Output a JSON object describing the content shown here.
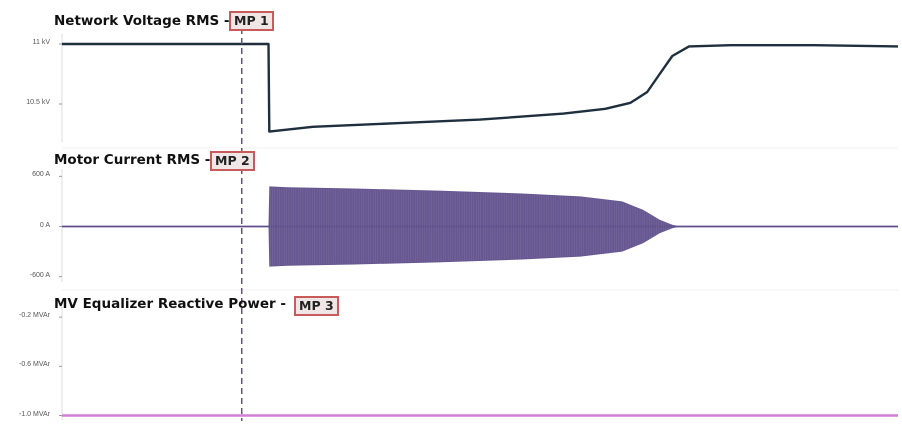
{
  "chart_data": [
    {
      "type": "line",
      "title": "Network Voltage RMS -",
      "badge": "MP 1",
      "yticks": [
        {
          "label": "11 kV",
          "value": 11.0
        },
        {
          "label": "10.5 kV",
          "value": 10.5
        }
      ],
      "ylim": [
        10.2,
        11.05
      ],
      "xlim": [
        0,
        100
      ],
      "series": [
        {
          "color": "#1f2f3d",
          "points": [
            [
              0,
              11.0
            ],
            [
              24.7,
              11.0
            ],
            [
              24.8,
              10.27
            ],
            [
              30,
              10.31
            ],
            [
              40,
              10.34
            ],
            [
              50,
              10.37
            ],
            [
              60,
              10.42
            ],
            [
              65,
              10.46
            ],
            [
              68,
              10.51
            ],
            [
              70,
              10.6
            ],
            [
              71.5,
              10.75
            ],
            [
              73,
              10.9
            ],
            [
              75,
              10.98
            ],
            [
              80,
              10.99
            ],
            [
              90,
              10.99
            ],
            [
              100,
              10.98
            ]
          ]
        }
      ]
    },
    {
      "type": "area",
      "title": "Motor Current RMS -",
      "badge": "MP 2",
      "yticks": [
        {
          "label": "600 A",
          "value": 600
        },
        {
          "label": "0 A",
          "value": 0
        },
        {
          "label": "-600 A",
          "value": -600
        }
      ],
      "ylim": [
        -640,
        640
      ],
      "xlim": [
        0,
        100
      ],
      "series": [
        {
          "color": "#5f4e8a",
          "envelope": [
            [
              0,
              0
            ],
            [
              24.7,
              0
            ],
            [
              24.8,
              480
            ],
            [
              27,
              470
            ],
            [
              35,
              455
            ],
            [
              45,
              430
            ],
            [
              55,
              395
            ],
            [
              62,
              360
            ],
            [
              67,
              300
            ],
            [
              69.5,
              200
            ],
            [
              71.5,
              80
            ],
            [
              73,
              20
            ],
            [
              74,
              0
            ],
            [
              100,
              0
            ]
          ]
        }
      ]
    },
    {
      "type": "line",
      "title": "MV Equalizer Reactive Power -",
      "badge": "MP 3",
      "yticks": [
        {
          "label": "-0.2 MVAr",
          "value": -0.2
        },
        {
          "label": "-0.6 MVAr",
          "value": -0.6
        },
        {
          "label": "-1.0 MVAr",
          "value": -1.0
        }
      ],
      "ylim": [
        -1.02,
        -0.15
      ],
      "xlim": [
        0,
        100
      ],
      "series": [
        {
          "color": "#d27fd6",
          "points": [
            [
              0,
              -1.0
            ],
            [
              100,
              -1.0
            ]
          ]
        }
      ]
    }
  ],
  "marker": {
    "x": 21.5,
    "color": "#6a4d8c"
  }
}
